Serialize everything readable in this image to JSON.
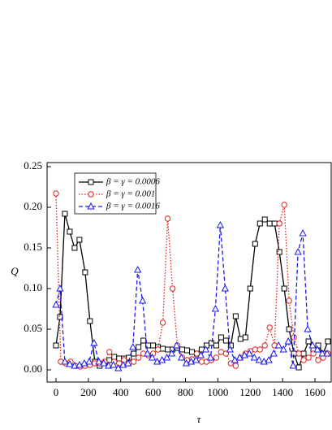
{
  "chart_data": {
    "type": "line",
    "x_label": "τ",
    "y_label": "Q",
    "xlim": [
      -55,
      1700
    ],
    "ylim": [
      -0.015,
      0.255
    ],
    "xticks": [
      0,
      200,
      400,
      600,
      800,
      1000,
      1200,
      1400,
      1600
    ],
    "yticks": [
      {
        "value": 0,
        "label": "0.00"
      },
      {
        "value": 0.05,
        "label": "0.05"
      },
      {
        "value": 0.1,
        "label": "0.10"
      },
      {
        "value": 0.15,
        "label": "0.15"
      },
      {
        "value": 0.2,
        "label": "0.20"
      },
      {
        "value": 0.25,
        "label": "0.25"
      }
    ],
    "legend": "upper left",
    "series": [
      {
        "name": "β = γ = 0.0006",
        "color": "#000000",
        "marker": "square",
        "linestyle": "solid",
        "x": [
          0,
          25,
          55,
          85,
          115,
          145,
          180,
          210,
          240,
          270,
          300,
          330,
          360,
          390,
          420,
          450,
          480,
          510,
          540,
          570,
          600,
          630,
          660,
          690,
          720,
          750,
          780,
          810,
          840,
          870,
          900,
          930,
          960,
          990,
          1020,
          1050,
          1080,
          1110,
          1140,
          1170,
          1200,
          1230,
          1260,
          1290,
          1320,
          1350,
          1380,
          1410,
          1440,
          1470,
          1500,
          1530,
          1560,
          1590,
          1620,
          1650,
          1680
        ],
        "values": [
          0.03,
          0.065,
          0.192,
          0.17,
          0.15,
          0.16,
          0.12,
          0.06,
          0.01,
          0.005,
          0.008,
          0.012,
          0.016,
          0.014,
          0.014,
          0.015,
          0.02,
          0.028,
          0.036,
          0.03,
          0.03,
          0.028,
          0.026,
          0.025,
          0.025,
          0.027,
          0.025,
          0.024,
          0.022,
          0.02,
          0.025,
          0.03,
          0.033,
          0.03,
          0.04,
          0.036,
          0.03,
          0.066,
          0.038,
          0.04,
          0.1,
          0.155,
          0.18,
          0.185,
          0.18,
          0.18,
          0.145,
          0.1,
          0.05,
          0.02,
          0.003,
          0.02,
          0.035,
          0.025,
          0.03,
          0.02,
          0.035
        ]
      },
      {
        "name": "β = γ = 0.001",
        "color": "#e8201a",
        "marker": "circle",
        "linestyle": "dotted",
        "x": [
          0,
          30,
          60,
          90,
          120,
          150,
          180,
          210,
          240,
          270,
          300,
          330,
          360,
          390,
          420,
          450,
          480,
          510,
          540,
          570,
          600,
          630,
          660,
          690,
          720,
          750,
          780,
          810,
          840,
          870,
          900,
          930,
          960,
          990,
          1020,
          1050,
          1080,
          1110,
          1140,
          1170,
          1200,
          1230,
          1260,
          1290,
          1320,
          1350,
          1380,
          1410,
          1440,
          1470,
          1500,
          1530,
          1560,
          1590,
          1620,
          1650,
          1680
        ],
        "values": [
          0.217,
          0.01,
          0.008,
          0.01,
          0.005,
          0.004,
          0.005,
          0.006,
          0.008,
          0.008,
          0.01,
          0.022,
          0.01,
          0.008,
          0.012,
          0.008,
          0.01,
          0.015,
          0.02,
          0.018,
          0.02,
          0.025,
          0.058,
          0.186,
          0.1,
          0.03,
          0.015,
          0.012,
          0.013,
          0.02,
          0.01,
          0.01,
          0.012,
          0.015,
          0.022,
          0.02,
          0.008,
          0.005,
          0.015,
          0.02,
          0.023,
          0.025,
          0.025,
          0.03,
          0.052,
          0.03,
          0.18,
          0.203,
          0.085,
          0.04,
          0.02,
          0.012,
          0.015,
          0.02,
          0.012,
          0.015,
          0.02
        ]
      },
      {
        "name": "β = γ = 0.0016",
        "color": "#1a1ae8",
        "marker": "triangle",
        "linestyle": "dashed",
        "x": [
          0,
          25,
          55,
          85,
          115,
          145,
          175,
          205,
          235,
          265,
          295,
          325,
          355,
          385,
          415,
          445,
          475,
          505,
          535,
          565,
          595,
          625,
          655,
          685,
          715,
          745,
          775,
          805,
          835,
          865,
          895,
          925,
          955,
          985,
          1015,
          1045,
          1075,
          1105,
          1135,
          1165,
          1195,
          1225,
          1255,
          1285,
          1315,
          1345,
          1375,
          1405,
          1435,
          1465,
          1495,
          1525,
          1555,
          1585,
          1615,
          1645,
          1675
        ],
        "values": [
          0.08,
          0.1,
          0.01,
          0.007,
          0.005,
          0.006,
          0.008,
          0.01,
          0.033,
          0.01,
          0.008,
          0.005,
          0.006,
          0.002,
          0.006,
          0.008,
          0.028,
          0.123,
          0.085,
          0.02,
          0.015,
          0.01,
          0.012,
          0.015,
          0.02,
          0.03,
          0.015,
          0.008,
          0.01,
          0.012,
          0.018,
          0.025,
          0.015,
          0.075,
          0.178,
          0.1,
          0.025,
          0.012,
          0.015,
          0.018,
          0.02,
          0.015,
          0.012,
          0.01,
          0.012,
          0.02,
          0.03,
          0.025,
          0.035,
          0.005,
          0.145,
          0.168,
          0.05,
          0.03,
          0.025,
          0.02,
          0.02
        ]
      }
    ]
  }
}
